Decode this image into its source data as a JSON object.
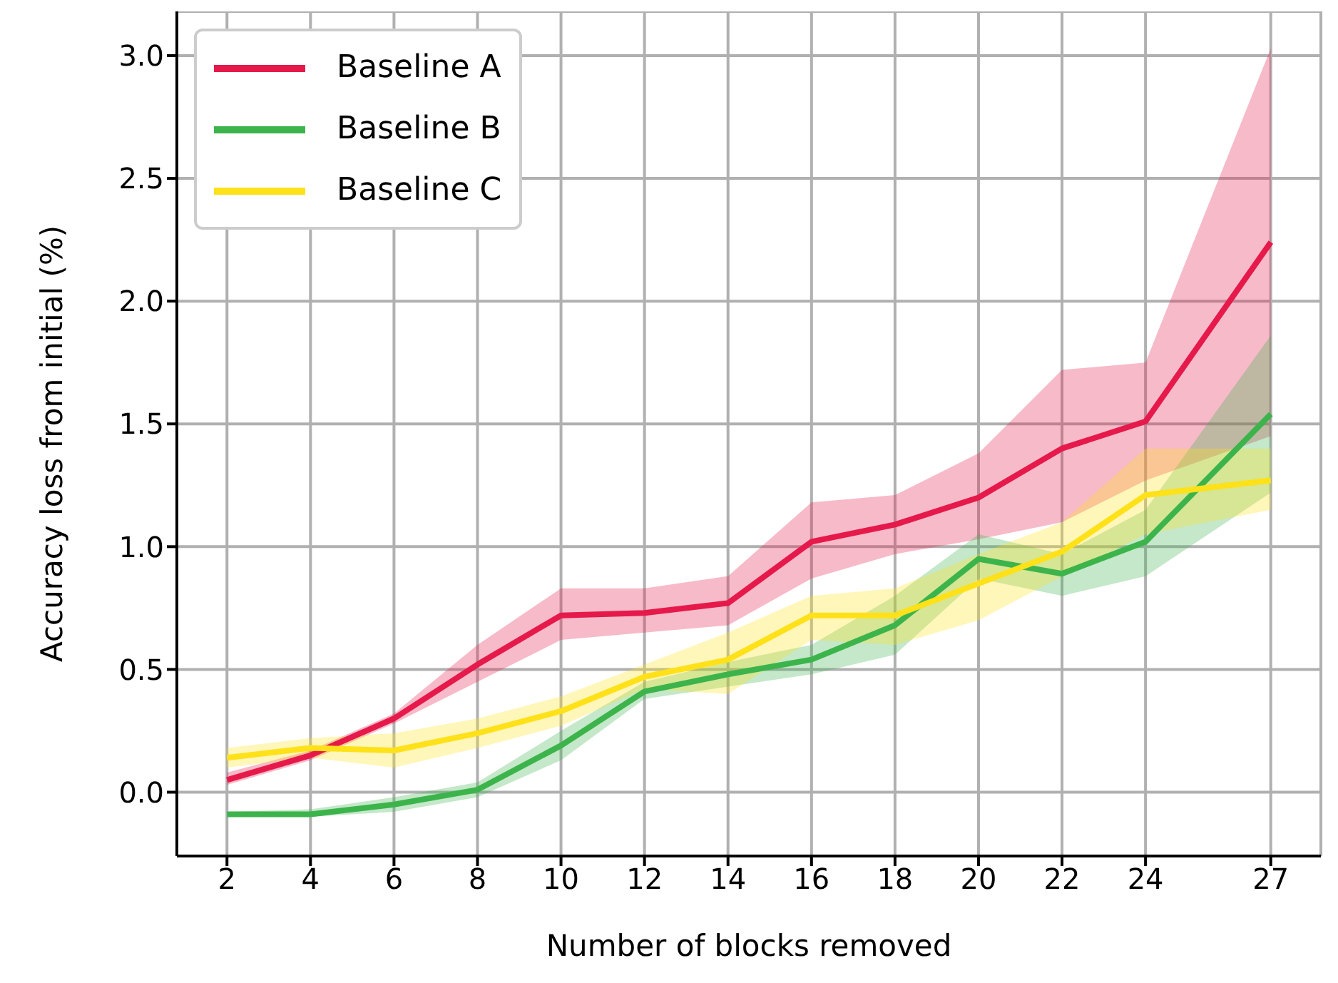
{
  "chart_data": {
    "type": "line",
    "xlabel": "Number of blocks removed",
    "ylabel": "Accuracy loss from initial (%)",
    "x": [
      2,
      4,
      6,
      8,
      10,
      12,
      14,
      16,
      18,
      20,
      22,
      24,
      27
    ],
    "series": [
      {
        "name": "Baseline A",
        "color": "#e6194b",
        "values": [
          0.05,
          0.15,
          0.3,
          0.52,
          0.72,
          0.73,
          0.77,
          1.02,
          1.09,
          1.2,
          1.4,
          1.51,
          2.24
        ],
        "lower": [
          0.03,
          0.13,
          0.28,
          0.45,
          0.62,
          0.65,
          0.68,
          0.87,
          0.97,
          1.03,
          1.1,
          1.27,
          1.45
        ],
        "upper": [
          0.08,
          0.17,
          0.32,
          0.6,
          0.83,
          0.83,
          0.88,
          1.18,
          1.21,
          1.38,
          1.72,
          1.75,
          3.03
        ]
      },
      {
        "name": "Baseline B",
        "color": "#3cb44b",
        "values": [
          -0.09,
          -0.09,
          -0.05,
          0.01,
          0.19,
          0.41,
          0.48,
          0.54,
          0.68,
          0.95,
          0.89,
          1.02,
          1.54
        ],
        "lower": [
          -0.1,
          -0.1,
          -0.08,
          -0.02,
          0.13,
          0.38,
          0.43,
          0.48,
          0.56,
          0.87,
          0.8,
          0.88,
          1.22
        ],
        "upper": [
          -0.08,
          -0.07,
          -0.02,
          0.04,
          0.25,
          0.45,
          0.53,
          0.6,
          0.8,
          1.05,
          0.97,
          1.15,
          1.86
        ]
      },
      {
        "name": "Baseline C",
        "color": "#ffe119",
        "values": [
          0.14,
          0.18,
          0.17,
          0.24,
          0.33,
          0.47,
          0.54,
          0.72,
          0.72,
          0.85,
          0.98,
          1.21,
          1.27
        ],
        "lower": [
          0.1,
          0.14,
          0.1,
          0.18,
          0.27,
          0.42,
          0.4,
          0.62,
          0.6,
          0.7,
          0.88,
          1.05,
          1.15
        ],
        "upper": [
          0.18,
          0.22,
          0.24,
          0.3,
          0.39,
          0.52,
          0.65,
          0.8,
          0.83,
          0.97,
          1.1,
          1.4,
          1.4
        ]
      }
    ],
    "xlim": [
      0.8,
      28.2
    ],
    "xticks": [
      2,
      4,
      6,
      8,
      10,
      12,
      14,
      16,
      18,
      20,
      22,
      24,
      27
    ],
    "ylim": [
      -0.26,
      3.18
    ],
    "yticks": [
      {
        "value": 0,
        "label": "0.0"
      },
      {
        "value": 0.5,
        "label": "0.5"
      },
      {
        "value": 1,
        "label": "1.0"
      },
      {
        "value": 1.5,
        "label": "1.5"
      },
      {
        "value": 2,
        "label": "2.0"
      },
      {
        "value": 2.5,
        "label": "2.5"
      },
      {
        "value": 3,
        "label": "3.0"
      }
    ],
    "grid": true,
    "legend": "top left",
    "marker": "none",
    "line_style": "solid"
  }
}
